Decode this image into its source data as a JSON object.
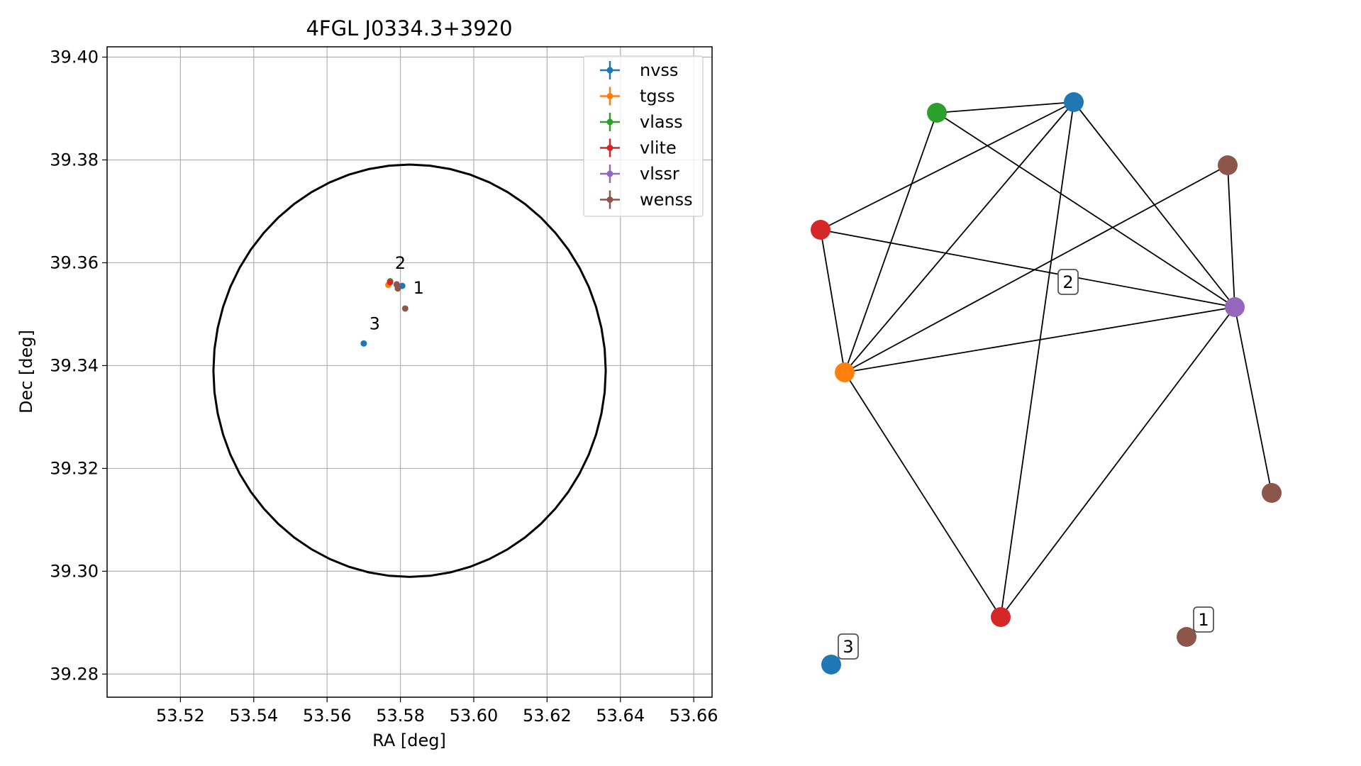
{
  "chart_data": [
    {
      "type": "scatter",
      "title": "4FGL J0334.3+3920",
      "xlabel": "RA [deg]",
      "ylabel": "Dec [deg]",
      "xlim": [
        53.5,
        53.665
      ],
      "ylim": [
        39.2755,
        39.402
      ],
      "grid": true,
      "x_ticks": [
        "53.52",
        "53.54",
        "53.56",
        "53.58",
        "53.60",
        "53.62",
        "53.64",
        "53.66"
      ],
      "y_ticks": [
        "39.28",
        "39.30",
        "39.32",
        "39.34",
        "39.36",
        "39.38",
        "39.40"
      ],
      "x_tick_values": [
        53.52,
        53.54,
        53.56,
        53.58,
        53.6,
        53.62,
        53.64,
        53.66
      ],
      "y_tick_values": [
        39.28,
        39.3,
        39.32,
        39.34,
        39.36,
        39.38,
        39.4
      ],
      "error_circle": {
        "ra": 53.5825,
        "dec": 39.339,
        "radius_ra": 0.0535,
        "radius_dec": 0.0401,
        "color": "#000000"
      },
      "legend_position": "upper right",
      "series": [
        {
          "name": "nvss",
          "color": "#1f77b4",
          "points": [
            {
              "x": 53.5805,
              "y": 39.3555
            },
            {
              "x": 53.57,
              "y": 39.3443
            }
          ]
        },
        {
          "name": "tgss",
          "color": "#ff7f0e",
          "points": [
            {
              "x": 53.5767,
              "y": 39.3557
            }
          ]
        },
        {
          "name": "vlass",
          "color": "#2ca02c",
          "points": [
            {
              "x": 53.5772,
              "y": 39.3564
            }
          ]
        },
        {
          "name": "vlite",
          "color": "#d62728",
          "points": [
            {
              "x": 53.5772,
              "y": 39.3562
            }
          ]
        },
        {
          "name": "vlssr",
          "color": "#9467bd",
          "points": [
            {
              "x": 53.579,
              "y": 39.3557
            }
          ]
        },
        {
          "name": "wenss",
          "color": "#8c564b",
          "points": [
            {
              "x": 53.579,
              "y": 39.3558
            },
            {
              "x": 53.5793,
              "y": 39.355
            },
            {
              "x": 53.5813,
              "y": 39.3511
            }
          ]
        }
      ],
      "point_labels": [
        {
          "text": "2",
          "x": 53.5785,
          "y": 39.3588
        },
        {
          "text": "1",
          "x": 53.5835,
          "y": 39.354
        },
        {
          "text": "3",
          "x": 53.5715,
          "y": 39.347
        }
      ]
    },
    {
      "type": "network",
      "nodes": [
        {
          "id": "n_blue_top",
          "color": "#1f77b4"
        },
        {
          "id": "n_green",
          "color": "#2ca02c"
        },
        {
          "id": "n_brown_top",
          "color": "#8c564b"
        },
        {
          "id": "n_red_left",
          "color": "#d62728"
        },
        {
          "id": "n_purple",
          "color": "#9467bd"
        },
        {
          "id": "n_orange",
          "color": "#ff7f0e"
        },
        {
          "id": "n_brown_right",
          "color": "#8c564b"
        },
        {
          "id": "n_red_bottom",
          "color": "#d62728"
        },
        {
          "id": "n_brown_bottom",
          "color": "#8c564b"
        },
        {
          "id": "n_blue_bottom",
          "color": "#1f77b4"
        }
      ],
      "edges": [
        [
          "n_green",
          "n_blue_top"
        ],
        [
          "n_green",
          "n_orange"
        ],
        [
          "n_green",
          "n_purple"
        ],
        [
          "n_blue_top",
          "n_red_left"
        ],
        [
          "n_blue_top",
          "n_orange"
        ],
        [
          "n_blue_top",
          "n_purple"
        ],
        [
          "n_blue_top",
          "n_red_bottom"
        ],
        [
          "n_brown_top",
          "n_orange"
        ],
        [
          "n_brown_top",
          "n_purple"
        ],
        [
          "n_red_left",
          "n_purple"
        ],
        [
          "n_red_left",
          "n_orange"
        ],
        [
          "n_orange",
          "n_purple"
        ],
        [
          "n_orange",
          "n_red_bottom"
        ],
        [
          "n_purple",
          "n_red_bottom"
        ],
        [
          "n_purple",
          "n_brown_right"
        ]
      ],
      "labels": [
        {
          "text": "2",
          "near": "edge-crossing"
        },
        {
          "text": "1",
          "near": "n_brown_bottom"
        },
        {
          "text": "3",
          "near": "n_blue_bottom"
        }
      ]
    }
  ]
}
